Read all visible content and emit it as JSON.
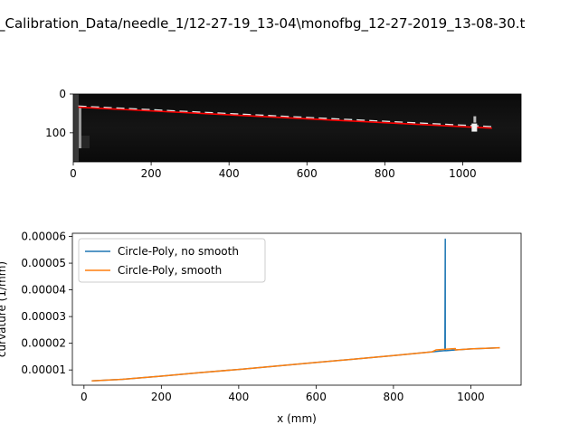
{
  "figure": {
    "title": "_Calibration_Data/needle_1/12-27-19_13-04\\monofbg_12-27-2019_13-08-30.t"
  },
  "chart_data": [
    {
      "type": "image",
      "image_overlay": {
        "xlim": [
          0,
          1150
        ],
        "ylim": [
          175,
          0
        ],
        "xticks": [
          0,
          200,
          400,
          600,
          800,
          1000
        ],
        "yticks": [
          0,
          100
        ],
        "red_line": {
          "x": [
            13,
            1075
          ],
          "y": [
            34,
            88
          ]
        },
        "white_dashed_line": {
          "x": [
            13,
            1075
          ],
          "y": [
            31,
            84
          ]
        },
        "bright_marker": {
          "x": 1030,
          "y": 90
        }
      }
    },
    {
      "type": "line",
      "xlabel": "x (mm)",
      "ylabel": "curvature (1/mm)",
      "xlim": [
        -30,
        1130
      ],
      "ylim": [
        4.3e-06,
        6.12e-05
      ],
      "xticks": [
        0,
        200,
        400,
        600,
        800,
        1000
      ],
      "yticks": [
        1e-05,
        2e-05,
        3e-05,
        4e-05,
        5e-05,
        6e-05
      ],
      "ytick_labels": [
        "0.00001",
        "0.00002",
        "0.00003",
        "0.00004",
        "0.00005",
        "0.00006"
      ],
      "legend_position": "upper-left",
      "series": [
        {
          "name": "Circle-Poly, no smooth",
          "color": "#1f77b4",
          "x": [
            20,
            100,
            200,
            300,
            400,
            500,
            600,
            700,
            800,
            900,
            930,
            933,
            934,
            934,
            935,
            936,
            950,
            1000,
            1075
          ],
          "y": [
            5.9e-06,
            6.5e-06,
            7.7e-06,
            9e-06,
            1.02e-05,
            1.15e-05,
            1.28e-05,
            1.41e-05,
            1.54e-05,
            1.68e-05,
            1.72e-05,
            1.72e-05,
            5.9e-05,
            1.72e-05,
            1.72e-05,
            1.72e-05,
            1.74e-05,
            1.79e-05,
            1.83e-05
          ]
        },
        {
          "name": "Circle-Poly, smooth",
          "color": "#ff7f0e",
          "x": [
            20,
            100,
            200,
            300,
            400,
            500,
            600,
            700,
            800,
            900,
            910,
            960,
            960,
            1000,
            1075
          ],
          "y": [
            5.9e-06,
            6.5e-06,
            7.7e-06,
            9e-06,
            1.02e-05,
            1.15e-05,
            1.28e-05,
            1.41e-05,
            1.54e-05,
            1.68e-05,
            1.75e-05,
            1.8e-05,
            1.75e-05,
            1.79e-05,
            1.83e-05
          ]
        }
      ]
    }
  ]
}
